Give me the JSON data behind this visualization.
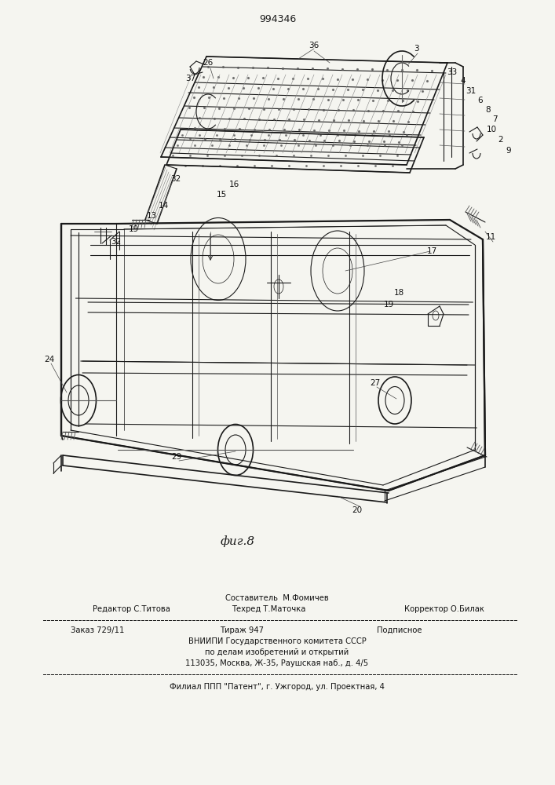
{
  "patent_number": "994346",
  "figure_label": "фиг.8",
  "bg_color": "#f5f5f0",
  "drawing_color": "#1a1a1a",
  "footer": {
    "sestavitel_label": "Составитель  М.Фомичев",
    "redaktor_label": "Редактор С.Титова",
    "tehred_label": "Техред Т.Маточка",
    "korrektor_label": "Корректор О.Билак",
    "zakaz_label": "Заказ 729/11",
    "tirazh_label": "Тираж 947",
    "podpisnoe_label": "Подписное",
    "vniip_line": "ВНИИПИ Государственного комитета СССР",
    "po_delam_line": "по делам изобретений и открытий",
    "address_line": "113035, Москва, Ж-35, Раушская наб., д. 4/5",
    "filial_line": "Филиал ППП \"Патент\", г. Ужгород, ул. Проектная, 4"
  },
  "fig_width": 7.07,
  "fig_height": 10.0
}
